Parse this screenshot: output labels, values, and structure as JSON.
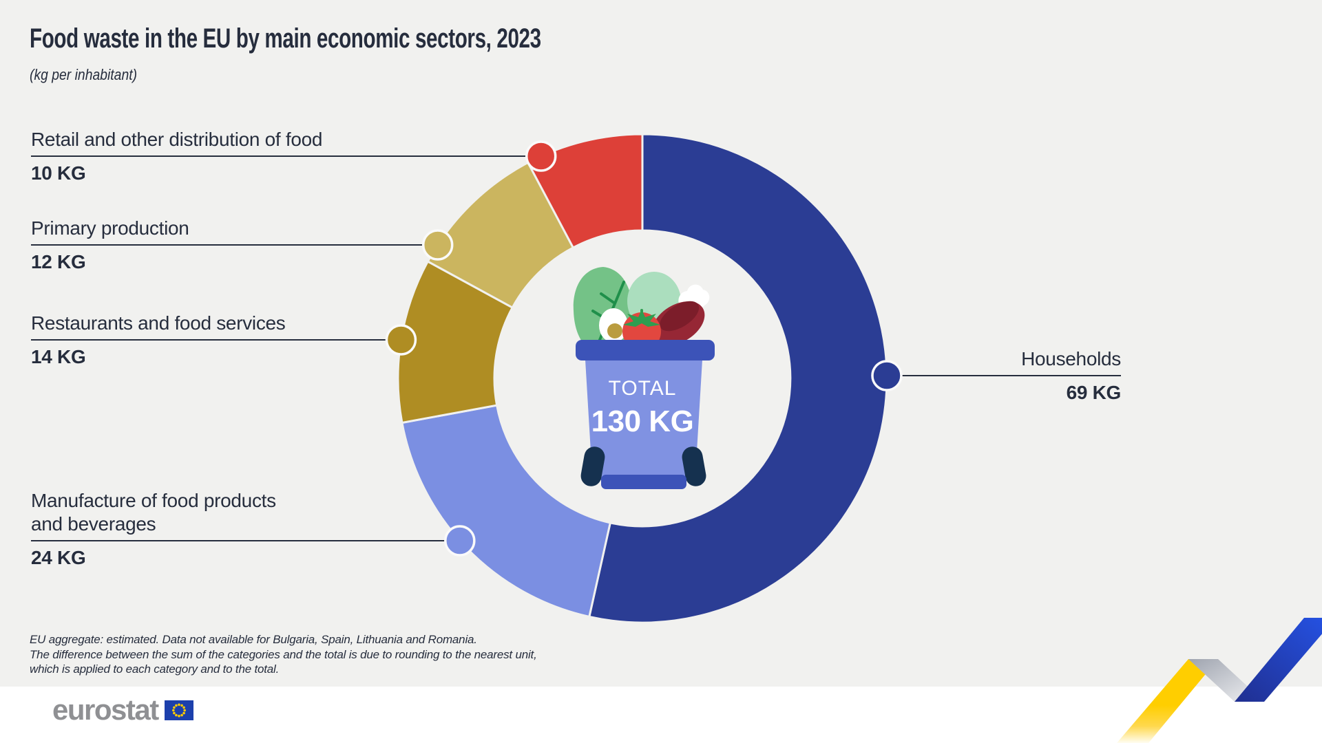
{
  "title": "Food waste in the EU by main economic sectors, 2023",
  "subtitle": "(kg per inhabitant)",
  "center": {
    "total_label": "TOTAL",
    "total_value": "130 KG"
  },
  "chart_data": {
    "type": "pie",
    "subtype": "donut",
    "title": "Food waste in the EU by main economic sectors, 2023",
    "unit": "kg per inhabitant",
    "total": 130,
    "total_label": "TOTAL 130 KG",
    "legend_position": "callouts",
    "segments": [
      {
        "label": "Households",
        "label_lines": [
          "Households"
        ],
        "value": 69,
        "value_label": "69 KG",
        "color": "#2B3D94"
      },
      {
        "label": "Manufacture of food products and beverages",
        "label_lines": [
          "Manufacture of food products",
          "and beverages"
        ],
        "value": 24,
        "value_label": "24 KG",
        "color": "#7B8FE2"
      },
      {
        "label": "Restaurants and food services",
        "label_lines": [
          "Restaurants and food services"
        ],
        "value": 14,
        "value_label": "14 KG",
        "color": "#AF8D23"
      },
      {
        "label": "Primary production",
        "label_lines": [
          "Primary production"
        ],
        "value": 12,
        "value_label": "12 KG",
        "color": "#CBB55F"
      },
      {
        "label": "Retail and other distribution of food",
        "label_lines": [
          "Retail and other distribution of food"
        ],
        "value": 10,
        "value_label": "10 KG",
        "color": "#DD4038"
      }
    ]
  },
  "footnote": {
    "lines": [
      "EU aggregate: estimated. Data not available for Bulgaria, Spain, Lithuania and Romania.",
      "The difference between the sum of the categories and the total is due to rounding to the nearest unit,",
      "which is applied to each category and to the total."
    ]
  },
  "logo": {
    "text": "eurostat"
  },
  "colors": {
    "background": "#F1F1EF",
    "footer_band": "#FFFFFF",
    "text": "#262D3D",
    "bin_body": "#8092E2",
    "bin_lid": "#3C53B8",
    "ribbon_yellow": "#FFCE00",
    "ribbon_blue": "#2553E6",
    "eu_flag_blue": "#1C40AC",
    "eu_flag_stars": "#FFCC00",
    "logo_gray": "#8F9093"
  }
}
